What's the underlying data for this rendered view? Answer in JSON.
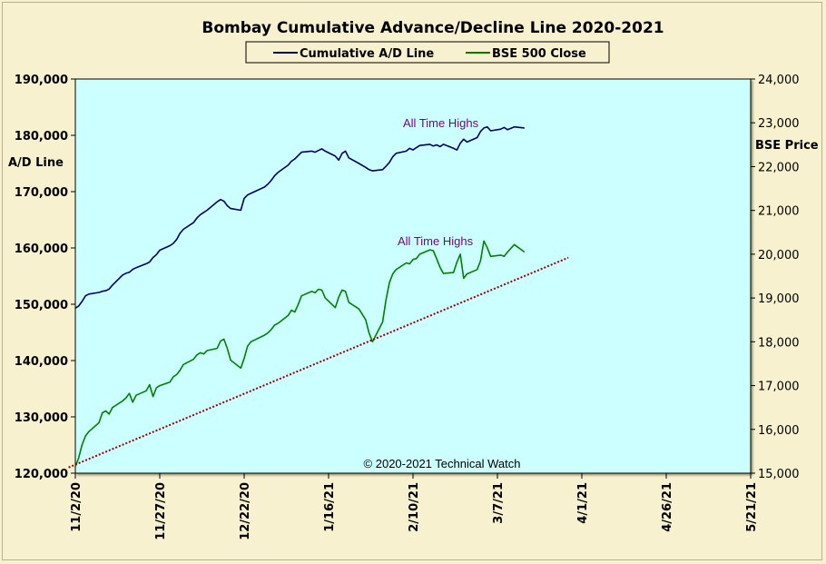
{
  "chart_data": {
    "type": "line",
    "title": "Bombay Cumulative Advance/Decline Line 2020-2021",
    "legend": {
      "placement": "top-center",
      "entries": [
        {
          "name": "Cumulative A/D Line",
          "color": "#000066"
        },
        {
          "name": "BSE 500 Close",
          "color": "#008000"
        }
      ]
    },
    "y_left": {
      "label": "A/D Line",
      "range": [
        120000,
        190000
      ],
      "ticks": [
        "120,000",
        "130,000",
        "140,000",
        "150,000",
        "160,000",
        "170,000",
        "180,000",
        "190,000"
      ]
    },
    "y_right": {
      "label": "BSE Price",
      "range": [
        15000,
        24000
      ],
      "ticks": [
        "15,000",
        "16,000",
        "17,000",
        "18,000",
        "19,000",
        "20,000",
        "21,000",
        "22,000",
        "23,000",
        "24,000"
      ]
    },
    "x_axis": {
      "type": "date",
      "range": [
        "2020-11-02",
        "2021-05-21"
      ],
      "ticks": [
        {
          "label": "11/2/20",
          "date": "2020-11-02"
        },
        {
          "label": "11/27/20",
          "date": "2020-11-27"
        },
        {
          "label": "12/22/20",
          "date": "2020-12-22"
        },
        {
          "label": "1/16/21",
          "date": "2021-01-16"
        },
        {
          "label": "2/10/21",
          "date": "2021-02-10"
        },
        {
          "label": "3/7/21",
          "date": "2021-03-07"
        },
        {
          "label": "4/1/21",
          "date": "2021-04-01"
        },
        {
          "label": "4/26/21",
          "date": "2021-04-26"
        },
        {
          "label": "5/21/21",
          "date": "2021-05-21"
        }
      ]
    },
    "grid": false,
    "plot_background": "#ccffff",
    "series": [
      {
        "name": "Cumulative A/D Line",
        "axis": "left",
        "color": "#000066",
        "points": [
          [
            "2020-11-02",
            149300
          ],
          [
            "2020-11-03",
            149700
          ],
          [
            "2020-11-04",
            150500
          ],
          [
            "2020-11-05",
            151500
          ],
          [
            "2020-11-06",
            151800
          ],
          [
            "2020-11-09",
            152100
          ],
          [
            "2020-11-10",
            152300
          ],
          [
            "2020-11-11",
            152400
          ],
          [
            "2020-11-12",
            152700
          ],
          [
            "2020-11-13",
            153400
          ],
          [
            "2020-11-16",
            155200
          ],
          [
            "2020-11-17",
            155500
          ],
          [
            "2020-11-18",
            155700
          ],
          [
            "2020-11-19",
            156200
          ],
          [
            "2020-11-20",
            156500
          ],
          [
            "2020-11-23",
            157200
          ],
          [
            "2020-11-24",
            157500
          ],
          [
            "2020-11-25",
            158300
          ],
          [
            "2020-11-26",
            158800
          ],
          [
            "2020-11-27",
            159600
          ],
          [
            "2020-11-30",
            160400
          ],
          [
            "2020-12-01",
            160800
          ],
          [
            "2020-12-02",
            161500
          ],
          [
            "2020-12-03",
            162600
          ],
          [
            "2020-12-04",
            163300
          ],
          [
            "2020-12-07",
            164500
          ],
          [
            "2020-12-08",
            165300
          ],
          [
            "2020-12-09",
            165900
          ],
          [
            "2020-12-10",
            166300
          ],
          [
            "2020-12-11",
            166700
          ],
          [
            "2020-12-14",
            168200
          ],
          [
            "2020-12-15",
            168600
          ],
          [
            "2020-12-16",
            168300
          ],
          [
            "2020-12-17",
            167500
          ],
          [
            "2020-12-18",
            167000
          ],
          [
            "2020-12-21",
            166700
          ],
          [
            "2020-12-22",
            168800
          ],
          [
            "2020-12-23",
            169400
          ],
          [
            "2020-12-24",
            169700
          ],
          [
            "2020-12-28",
            170800
          ],
          [
            "2020-12-29",
            171300
          ],
          [
            "2020-12-30",
            172000
          ],
          [
            "2020-12-31",
            172800
          ],
          [
            "2021-01-01",
            173400
          ],
          [
            "2021-01-04",
            174700
          ],
          [
            "2021-01-05",
            175400
          ],
          [
            "2021-01-06",
            175800
          ],
          [
            "2021-01-07",
            176400
          ],
          [
            "2021-01-08",
            177000
          ],
          [
            "2021-01-11",
            177200
          ],
          [
            "2021-01-12",
            177000
          ],
          [
            "2021-01-13",
            177300
          ],
          [
            "2021-01-14",
            177600
          ],
          [
            "2021-01-15",
            177200
          ],
          [
            "2021-01-18",
            176300
          ],
          [
            "2021-01-19",
            175600
          ],
          [
            "2021-01-20",
            176800
          ],
          [
            "2021-01-21",
            177200
          ],
          [
            "2021-01-22",
            176000
          ],
          [
            "2021-01-25",
            175000
          ],
          [
            "2021-01-27",
            174300
          ],
          [
            "2021-01-28",
            173900
          ],
          [
            "2021-01-29",
            173700
          ],
          [
            "2021-02-01",
            173900
          ],
          [
            "2021-02-02",
            174500
          ],
          [
            "2021-02-03",
            175200
          ],
          [
            "2021-02-04",
            176200
          ],
          [
            "2021-02-05",
            176800
          ],
          [
            "2021-02-08",
            177200
          ],
          [
            "2021-02-09",
            177700
          ],
          [
            "2021-02-10",
            177400
          ],
          [
            "2021-02-11",
            177800
          ],
          [
            "2021-02-12",
            178200
          ],
          [
            "2021-02-15",
            178400
          ],
          [
            "2021-02-16",
            178100
          ],
          [
            "2021-02-17",
            178300
          ],
          [
            "2021-02-18",
            178000
          ],
          [
            "2021-02-19",
            178400
          ],
          [
            "2021-02-22",
            177700
          ],
          [
            "2021-02-23",
            177400
          ],
          [
            "2021-02-24",
            178600
          ],
          [
            "2021-02-25",
            179300
          ],
          [
            "2021-02-26",
            178800
          ],
          [
            "2021-03-01",
            179600
          ],
          [
            "2021-03-02",
            180700
          ],
          [
            "2021-03-03",
            181300
          ],
          [
            "2021-03-04",
            181500
          ],
          [
            "2021-03-05",
            180800
          ],
          [
            "2021-03-08",
            181100
          ],
          [
            "2021-03-09",
            181400
          ],
          [
            "2021-03-10",
            181000
          ],
          [
            "2021-03-12",
            181500
          ],
          [
            "2021-03-15",
            181300
          ]
        ]
      },
      {
        "name": "BSE 500 Close",
        "axis": "right",
        "color": "#008000",
        "points": [
          [
            "2020-11-02",
            15150
          ],
          [
            "2020-11-03",
            15350
          ],
          [
            "2020-11-04",
            15650
          ],
          [
            "2020-11-05",
            15850
          ],
          [
            "2020-11-06",
            15950
          ],
          [
            "2020-11-09",
            16150
          ],
          [
            "2020-11-10",
            16380
          ],
          [
            "2020-11-11",
            16420
          ],
          [
            "2020-11-12",
            16350
          ],
          [
            "2020-11-13",
            16500
          ],
          [
            "2020-11-16",
            16650
          ],
          [
            "2020-11-17",
            16720
          ],
          [
            "2020-11-18",
            16820
          ],
          [
            "2020-11-19",
            16620
          ],
          [
            "2020-11-20",
            16780
          ],
          [
            "2020-11-23",
            16880
          ],
          [
            "2020-11-24",
            17020
          ],
          [
            "2020-11-25",
            16750
          ],
          [
            "2020-11-26",
            16950
          ],
          [
            "2020-11-27",
            17000
          ],
          [
            "2020-11-30",
            17080
          ],
          [
            "2020-12-01",
            17200
          ],
          [
            "2020-12-02",
            17250
          ],
          [
            "2020-12-03",
            17350
          ],
          [
            "2020-12-04",
            17480
          ],
          [
            "2020-12-07",
            17600
          ],
          [
            "2020-12-08",
            17700
          ],
          [
            "2020-12-09",
            17750
          ],
          [
            "2020-12-10",
            17720
          ],
          [
            "2020-12-11",
            17800
          ],
          [
            "2020-12-14",
            17850
          ],
          [
            "2020-12-15",
            18020
          ],
          [
            "2020-12-16",
            18060
          ],
          [
            "2020-12-17",
            17850
          ],
          [
            "2020-12-18",
            17580
          ],
          [
            "2020-12-21",
            17400
          ],
          [
            "2020-12-22",
            17620
          ],
          [
            "2020-12-23",
            17900
          ],
          [
            "2020-12-24",
            18000
          ],
          [
            "2020-12-28",
            18150
          ],
          [
            "2020-12-29",
            18200
          ],
          [
            "2020-12-30",
            18280
          ],
          [
            "2020-12-31",
            18380
          ],
          [
            "2021-01-01",
            18420
          ],
          [
            "2021-01-04",
            18600
          ],
          [
            "2021-01-05",
            18720
          ],
          [
            "2021-01-06",
            18680
          ],
          [
            "2021-01-07",
            18850
          ],
          [
            "2021-01-08",
            19050
          ],
          [
            "2021-01-11",
            19150
          ],
          [
            "2021-01-12",
            19120
          ],
          [
            "2021-01-13",
            19200
          ],
          [
            "2021-01-14",
            19180
          ],
          [
            "2021-01-15",
            19000
          ],
          [
            "2021-01-18",
            18780
          ],
          [
            "2021-01-19",
            19020
          ],
          [
            "2021-01-20",
            19180
          ],
          [
            "2021-01-21",
            19150
          ],
          [
            "2021-01-22",
            18900
          ],
          [
            "2021-01-25",
            18750
          ],
          [
            "2021-01-27",
            18500
          ],
          [
            "2021-01-28",
            18200
          ],
          [
            "2021-01-29",
            18000
          ],
          [
            "2021-02-01",
            18450
          ],
          [
            "2021-02-02",
            18950
          ],
          [
            "2021-02-03",
            19350
          ],
          [
            "2021-02-04",
            19550
          ],
          [
            "2021-02-05",
            19650
          ],
          [
            "2021-02-08",
            19800
          ],
          [
            "2021-02-09",
            19780
          ],
          [
            "2021-02-10",
            19880
          ],
          [
            "2021-02-11",
            19900
          ],
          [
            "2021-02-12",
            20000
          ],
          [
            "2021-02-15",
            20100
          ],
          [
            "2021-02-16",
            20080
          ],
          [
            "2021-02-17",
            19900
          ],
          [
            "2021-02-18",
            19700
          ],
          [
            "2021-02-19",
            19560
          ],
          [
            "2021-02-22",
            19580
          ],
          [
            "2021-02-23",
            19820
          ],
          [
            "2021-02-24",
            20000
          ],
          [
            "2021-02-25",
            19450
          ],
          [
            "2021-02-26",
            19550
          ],
          [
            "2021-03-01",
            19650
          ],
          [
            "2021-03-02",
            19850
          ],
          [
            "2021-03-03",
            20300
          ],
          [
            "2021-03-04",
            20150
          ],
          [
            "2021-03-05",
            19950
          ],
          [
            "2021-03-08",
            19980
          ],
          [
            "2021-03-09",
            19950
          ],
          [
            "2021-03-10",
            20050
          ],
          [
            "2021-03-12",
            20220
          ],
          [
            "2021-03-15",
            20050
          ]
        ]
      },
      {
        "name": "",
        "axis": "right",
        "style": "dotted",
        "color": "#990000",
        "points": [
          [
            "2020-10-31",
            15130
          ],
          [
            "2021-03-28",
            19920
          ]
        ]
      }
    ],
    "annotations": [
      {
        "text": "All Time Highs",
        "near_series": "Cumulative A/D Line"
      },
      {
        "text": "All Time Highs",
        "near_series": "BSE 500 Close"
      },
      {
        "text": "© 2020-2021 Technical Watch",
        "position": "bottom-center"
      }
    ]
  }
}
